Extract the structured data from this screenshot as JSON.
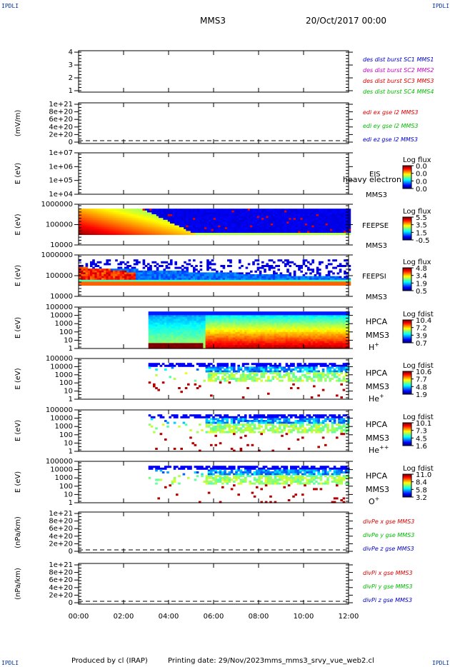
{
  "header": {
    "corner_label": "IPDLI",
    "title": "MMS3",
    "date": "20/Oct/2017 00:00"
  },
  "footer": {
    "produced_by": "Produced by cl (IRAP)",
    "printing_date": "Printing date: 29/Nov/2023",
    "script_name": "mms_mms3_srvy_vue_web2.cl"
  },
  "x_axis": {
    "range_hours": [
      0,
      12
    ],
    "ticks": [
      {
        "h": 0,
        "label": "00:00"
      },
      {
        "h": 2,
        "label": "02:00"
      },
      {
        "h": 4,
        "label": "04:00"
      },
      {
        "h": 6,
        "label": "06:00"
      },
      {
        "h": 8,
        "label": "08:00"
      },
      {
        "h": 10,
        "label": "10:00"
      },
      {
        "h": 12,
        "label": "12:00"
      }
    ]
  },
  "chart_data": [
    {
      "type": "line",
      "ylabel": "",
      "yticks": [
        "1",
        "2",
        "3",
        "4"
      ],
      "legend": [
        {
          "text": "des dist burst SC1 MMS1",
          "color": "#0000cc"
        },
        {
          "text": "des dist burst SC2 MMS2",
          "color": "#cc00cc"
        },
        {
          "text": "des dist burst SC3 MMS3",
          "color": "#dd0000"
        },
        {
          "text": "des dist burst SC4 MMS4",
          "color": "#00bb00"
        }
      ]
    },
    {
      "type": "line",
      "ylabel": "(mV/m)",
      "yticks": [
        "0",
        "2e+20",
        "4e+20",
        "6e+20",
        "8e+20",
        "1e+21"
      ],
      "zero_line": true,
      "legend": [
        {
          "text": "edi ex gse l2 MMS3",
          "color": "#dd0000"
        },
        {
          "text": "edi ey gse l2 MMS3",
          "color": "#00bb00"
        },
        {
          "text": "edi ez gse l2 MMS3",
          "color": "#0000cc"
        }
      ]
    },
    {
      "type": "heatmap",
      "ylabel": "E (eV)",
      "yticks": [
        "1e+04",
        "1e+05",
        "1e+06",
        "1e+07"
      ],
      "instrument": "EIS",
      "spacecraft": "MMS3",
      "overlay_text": "heavy electron to",
      "colorbar_title": "Log flux",
      "colorbar_ticks": [
        "0.0",
        "0.0",
        "0.0",
        "0.0"
      ],
      "data_start_h": null
    },
    {
      "type": "heatmap",
      "ylabel": "E (eV)",
      "yticks": [
        "10000",
        "100000",
        "1000000"
      ],
      "instrument": "FEEPSE",
      "spacecraft": "MMS3",
      "colorbar_title": "Log flux",
      "colorbar_ticks": [
        "5.5",
        "3.5",
        "1.5",
        "-0.5"
      ],
      "data_start_h": 0
    },
    {
      "type": "heatmap",
      "ylabel": "E (eV)",
      "yticks": [
        "10000",
        "100000",
        "1000000"
      ],
      "instrument": "FEEPSI",
      "spacecraft": "MMS3",
      "colorbar_title": "Log flux",
      "colorbar_ticks": [
        "4.8",
        "3.4",
        "1.9",
        "0.5"
      ],
      "data_start_h": 0
    },
    {
      "type": "heatmap",
      "ylabel": "E (eV)",
      "yticks": [
        "1",
        "10",
        "100",
        "1000",
        "10000",
        "100000"
      ],
      "instrument": "HPCA",
      "spacecraft": "MMS3",
      "species": "H",
      "species_sup": "+",
      "colorbar_title": "Log fdist",
      "colorbar_ticks": [
        "10.4",
        "7.2",
        "3.9",
        "0.7"
      ],
      "data_start_h": 3.1
    },
    {
      "type": "heatmap",
      "ylabel": "E (eV)",
      "yticks": [
        "1",
        "10",
        "100",
        "1000",
        "10000",
        "100000"
      ],
      "instrument": "HPCA",
      "spacecraft": "MMS3",
      "species": "He",
      "species_sup": "+",
      "colorbar_title": "Log fdist",
      "colorbar_ticks": [
        "10.6",
        "7.7",
        "4.8",
        "1.9"
      ],
      "data_start_h": 3.1
    },
    {
      "type": "heatmap",
      "ylabel": "E (eV)",
      "yticks": [
        "1",
        "10",
        "100",
        "1000",
        "10000",
        "100000"
      ],
      "instrument": "HPCA",
      "spacecraft": "MMS3",
      "species": "He",
      "species_sup": "++",
      "colorbar_title": "Log fdist",
      "colorbar_ticks": [
        "10.1",
        "7.3",
        "4.5",
        "1.6"
      ],
      "data_start_h": 3.1
    },
    {
      "type": "heatmap",
      "ylabel": "E (eV)",
      "yticks": [
        "1",
        "10",
        "100",
        "1000",
        "10000",
        "100000"
      ],
      "instrument": "HPCA",
      "spacecraft": "MMS3",
      "species": "O",
      "species_sup": "+",
      "colorbar_title": "Log fdist",
      "colorbar_ticks": [
        "11.0",
        "8.4",
        "5.8",
        "3.2"
      ],
      "data_start_h": 3.1
    },
    {
      "type": "line",
      "ylabel": "(nPa/km)",
      "yticks": [
        "0",
        "2e+20",
        "4e+20",
        "6e+20",
        "8e+20",
        "1e+21"
      ],
      "zero_line": true,
      "legend": [
        {
          "text": "divPe x gse MMS3",
          "color": "#dd0000"
        },
        {
          "text": "divPe y gse MMS3",
          "color": "#00bb00"
        },
        {
          "text": "divPe z gse MMS3",
          "color": "#0000cc"
        }
      ]
    },
    {
      "type": "line",
      "ylabel": "(nPa/km)",
      "yticks": [
        "0",
        "2e+20",
        "4e+20",
        "6e+20",
        "8e+20",
        "1e+21"
      ],
      "zero_line": true,
      "legend": [
        {
          "text": "divPi x gse MMS3",
          "color": "#dd0000"
        },
        {
          "text": "divPi y gse MMS3",
          "color": "#00bb00"
        },
        {
          "text": "divPi z gse MMS3",
          "color": "#0000cc"
        }
      ]
    }
  ]
}
